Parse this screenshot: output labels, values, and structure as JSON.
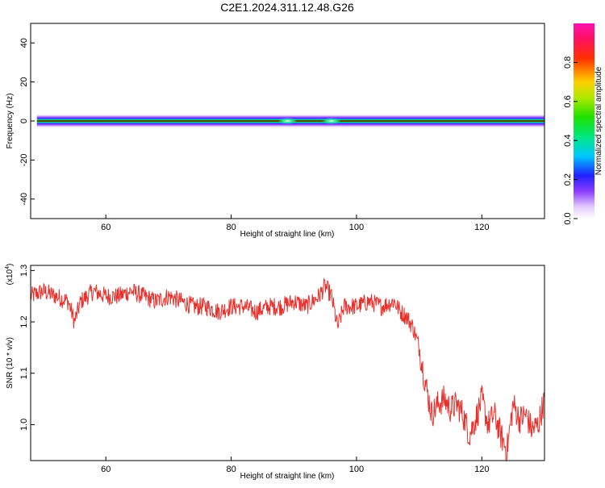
{
  "title": "C2E1.2024.311.12.48.G26",
  "chart_data": [
    {
      "type": "heatmap",
      "xlabel": "Height of straight line (km)",
      "ylabel": "Frequency (Hz)",
      "xlim": [
        48,
        130
      ],
      "ylim": [
        -50,
        50
      ],
      "x_ticks": [
        "60",
        "80",
        "100",
        "120"
      ],
      "y_ticks": [
        "-40",
        "-20",
        "0",
        "20",
        "40"
      ],
      "colorbar": {
        "label": "Normalized spectral amplitude",
        "range": [
          0,
          1
        ],
        "ticks": [
          "0.0",
          "0.2",
          "0.4",
          "0.6",
          "0.8"
        ]
      },
      "band": {
        "center_frequency": 0,
        "x_start": 49,
        "x_end": 130,
        "bright_spots_x": [
          89,
          96
        ]
      }
    },
    {
      "type": "line",
      "xlabel": "Height of straight line (km)",
      "ylabel": "SNR (10 * v/v)",
      "y_multiplier_label": "(x10",
      "y_multiplier_exp": "4",
      "y_multiplier_close": ")",
      "xlim": [
        48,
        130
      ],
      "ylim": [
        0.93,
        1.31
      ],
      "x_ticks": [
        "60",
        "80",
        "100",
        "120"
      ],
      "y_ticks": [
        "1.0",
        "1.1",
        "1.2",
        "1.3"
      ],
      "color": "#e8302c",
      "series": [
        {
          "x": [
            48,
            50,
            52,
            54,
            55,
            56,
            58,
            60,
            62,
            64,
            66,
            68,
            70,
            72,
            74,
            76,
            78,
            80,
            82,
            84,
            86,
            88,
            90,
            92,
            94,
            95,
            96,
            97,
            98,
            100,
            102,
            104,
            106,
            107,
            108,
            109,
            110,
            111,
            112,
            113,
            114,
            115,
            116,
            117,
            118,
            119,
            120,
            121,
            122,
            123,
            124,
            125,
            126,
            127,
            128,
            129,
            130
          ],
          "y": [
            1.25,
            1.26,
            1.25,
            1.24,
            1.2,
            1.24,
            1.26,
            1.25,
            1.25,
            1.26,
            1.25,
            1.24,
            1.25,
            1.24,
            1.23,
            1.23,
            1.22,
            1.23,
            1.23,
            1.22,
            1.23,
            1.23,
            1.24,
            1.23,
            1.25,
            1.27,
            1.25,
            1.19,
            1.23,
            1.23,
            1.24,
            1.23,
            1.24,
            1.22,
            1.21,
            1.19,
            1.15,
            1.08,
            1.02,
            1.04,
            1.05,
            1.03,
            1.04,
            1.02,
            0.98,
            1.01,
            1.05,
            1.0,
            1.02,
            0.98,
            0.95,
            1.04,
            1.01,
            1.02,
            0.99,
            1.0,
            1.05
          ]
        }
      ]
    }
  ]
}
